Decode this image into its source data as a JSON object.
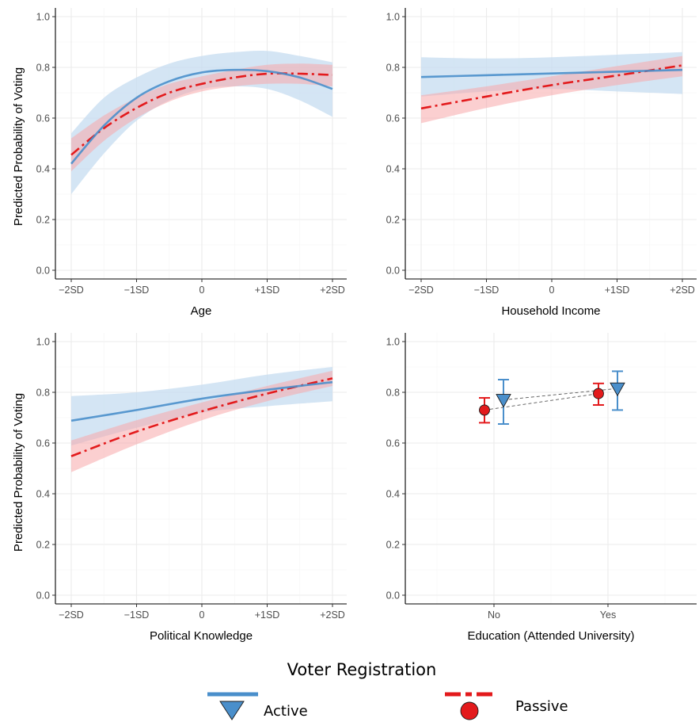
{
  "legend": {
    "title": "Voter Registration",
    "items": [
      {
        "label": "Active",
        "color": "#4a8fcb",
        "band_color": "#c6dcf0",
        "marker": "triangle-down",
        "line": "solid"
      },
      {
        "label": "Passive",
        "color": "#e31a1c",
        "band_color": "#f7a8aa",
        "marker": "circle",
        "line": "dashdot"
      }
    ]
  },
  "chart_data": [
    {
      "type": "line",
      "panel": "top-left",
      "xlabel": "Age",
      "ylabel": "Predicted Probability of Voting",
      "x_ticks": [
        "−2SD",
        "−1SD",
        "0",
        "+1SD",
        "+2SD"
      ],
      "x_range": [
        -2,
        2
      ],
      "ylim": [
        0,
        1
      ],
      "y_ticks": [
        "0.0",
        "0.2",
        "0.4",
        "0.6",
        "0.8",
        "1.0"
      ],
      "grid": true,
      "series": [
        {
          "name": "Active",
          "x": [
            -2,
            -1.5,
            -1,
            -0.5,
            0,
            0.5,
            1,
            1.5,
            2
          ],
          "y": [
            0.42,
            0.57,
            0.68,
            0.745,
            0.78,
            0.79,
            0.785,
            0.76,
            0.715
          ],
          "lower": [
            0.3,
            0.46,
            0.59,
            0.67,
            0.715,
            0.725,
            0.715,
            0.67,
            0.605
          ],
          "upper": [
            0.54,
            0.68,
            0.76,
            0.815,
            0.845,
            0.86,
            0.865,
            0.845,
            0.82
          ]
        },
        {
          "name": "Passive",
          "x": [
            -2,
            -1.5,
            -1,
            -0.5,
            0,
            0.5,
            1,
            1.5,
            2
          ],
          "y": [
            0.455,
            0.56,
            0.64,
            0.7,
            0.735,
            0.76,
            0.775,
            0.775,
            0.77
          ],
          "lower": [
            0.39,
            0.51,
            0.6,
            0.665,
            0.705,
            0.725,
            0.735,
            0.735,
            0.725
          ],
          "upper": [
            0.52,
            0.61,
            0.68,
            0.735,
            0.765,
            0.79,
            0.81,
            0.815,
            0.81
          ]
        }
      ]
    },
    {
      "type": "line",
      "panel": "top-right",
      "xlabel": "Household Income",
      "ylabel": "",
      "x_ticks": [
        "−2SD",
        "−1SD",
        "0",
        "+1SD",
        "+2SD"
      ],
      "x_range": [
        -2,
        2
      ],
      "ylim": [
        0,
        1
      ],
      "y_ticks": [
        "0.0",
        "0.2",
        "0.4",
        "0.6",
        "0.8",
        "1.0"
      ],
      "grid": true,
      "series": [
        {
          "name": "Active",
          "x": [
            -2,
            -1,
            0,
            1,
            2
          ],
          "y": [
            0.762,
            0.769,
            0.776,
            0.783,
            0.79
          ],
          "lower": [
            0.685,
            0.705,
            0.715,
            0.705,
            0.695
          ],
          "upper": [
            0.84,
            0.835,
            0.84,
            0.85,
            0.86
          ]
        },
        {
          "name": "Passive",
          "x": [
            -2,
            -1,
            0,
            1,
            2
          ],
          "y": [
            0.638,
            0.685,
            0.73,
            0.768,
            0.808
          ],
          "lower": [
            0.58,
            0.64,
            0.69,
            0.73,
            0.765
          ],
          "upper": [
            0.69,
            0.725,
            0.765,
            0.805,
            0.845
          ]
        }
      ]
    },
    {
      "type": "line",
      "panel": "bottom-left",
      "xlabel": "Political Knowledge",
      "ylabel": "Predicted Probability of Voting",
      "x_ticks": [
        "−2SD",
        "−1SD",
        "0",
        "+1SD",
        "+2SD"
      ],
      "x_range": [
        -2,
        2
      ],
      "ylim": [
        0,
        1
      ],
      "y_ticks": [
        "0.0",
        "0.2",
        "0.4",
        "0.6",
        "0.8",
        "1.0"
      ],
      "grid": true,
      "series": [
        {
          "name": "Active",
          "x": [
            -2,
            -1,
            0,
            1,
            2
          ],
          "y": [
            0.688,
            0.73,
            0.775,
            0.81,
            0.84
          ],
          "lower": [
            0.59,
            0.66,
            0.72,
            0.745,
            0.765
          ],
          "upper": [
            0.785,
            0.8,
            0.83,
            0.87,
            0.9
          ]
        },
        {
          "name": "Passive",
          "x": [
            -2,
            -1,
            0,
            1,
            2
          ],
          "y": [
            0.548,
            0.645,
            0.725,
            0.795,
            0.855
          ],
          "lower": [
            0.485,
            0.595,
            0.69,
            0.765,
            0.825
          ],
          "upper": [
            0.61,
            0.69,
            0.76,
            0.825,
            0.885
          ]
        }
      ]
    },
    {
      "type": "scatter",
      "panel": "bottom-right",
      "xlabel": "Education (Attended University)",
      "ylabel": "",
      "categories": [
        "No",
        "Yes"
      ],
      "ylim": [
        0,
        1
      ],
      "y_ticks": [
        "0.0",
        "0.2",
        "0.4",
        "0.6",
        "0.8",
        "1.0"
      ],
      "grid": true,
      "series": [
        {
          "name": "Active",
          "values": [
            0.77,
            0.815
          ],
          "lower": [
            0.675,
            0.73
          ],
          "upper": [
            0.85,
            0.883
          ]
        },
        {
          "name": "Passive",
          "values": [
            0.73,
            0.795
          ],
          "lower": [
            0.68,
            0.75
          ],
          "upper": [
            0.778,
            0.835
          ]
        }
      ]
    }
  ]
}
